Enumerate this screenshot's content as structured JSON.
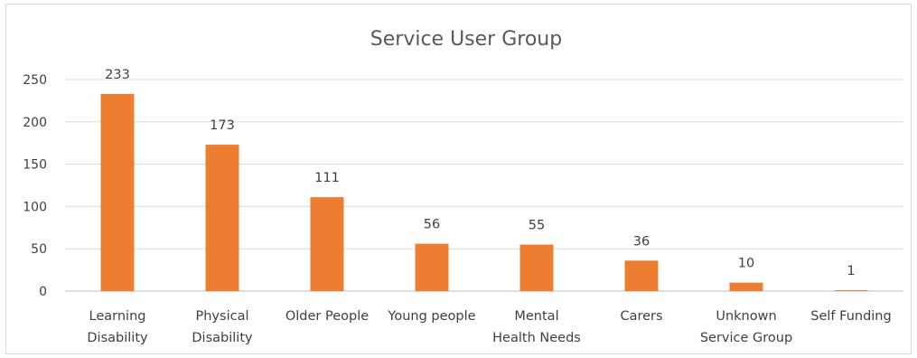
{
  "chart_data": {
    "type": "bar",
    "title": "Service User Group",
    "categories": [
      [
        "Learning",
        "Disability"
      ],
      [
        "Physical",
        "Disability"
      ],
      [
        "Older People"
      ],
      [
        "Young people"
      ],
      [
        "Mental",
        "Health Needs"
      ],
      [
        "Carers"
      ],
      [
        "Unknown",
        "Service Group"
      ],
      [
        "Self Funding"
      ]
    ],
    "values": [
      233,
      173,
      111,
      56,
      55,
      36,
      10,
      1
    ],
    "ylim": [
      0,
      250
    ],
    "yticks": [
      0,
      50,
      100,
      150,
      200,
      250
    ],
    "grid": true,
    "legend": "none",
    "bar_color": "#ED7D31"
  }
}
